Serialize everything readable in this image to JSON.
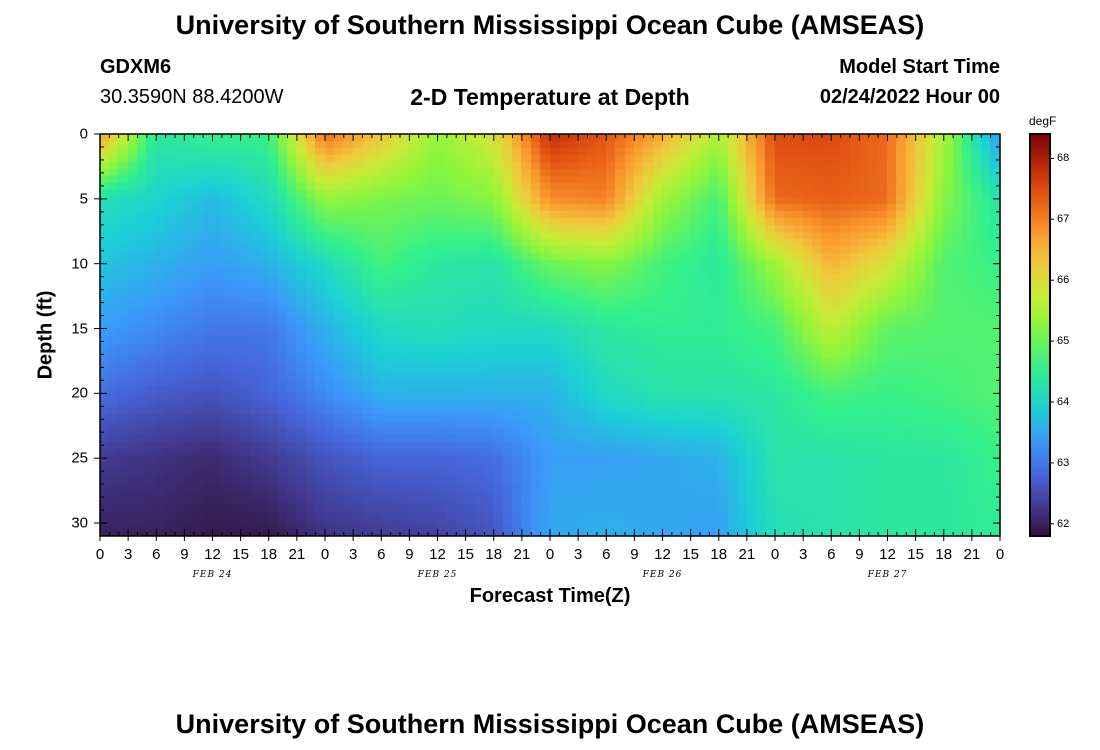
{
  "header": {
    "title": "University of Southern Mississippi Ocean Cube (AMSEAS)",
    "station_id": "GDXM6",
    "coordinates": "30.3590N  88.4200W",
    "plot_title": "2-D Temperature at Depth",
    "model_start_label": "Model Start Time",
    "model_start_value": "02/24/2022 Hour 00"
  },
  "footer": {
    "title": "University of Southern Mississippi Ocean Cube (AMSEAS)"
  },
  "chart_data": {
    "type": "heatmap",
    "title": "2-D Temperature at Depth",
    "xlabel": "Forecast Time(Z)",
    "ylabel": "Depth (ft)",
    "x_hours_range": [
      0,
      96
    ],
    "x_tick_step_hours": 3,
    "x_tick_labels": [
      "0",
      "3",
      "6",
      "9",
      "12",
      "15",
      "18",
      "21",
      "0",
      "3",
      "6",
      "9",
      "12",
      "15",
      "18",
      "21",
      "0",
      "3",
      "6",
      "9",
      "12",
      "15",
      "18",
      "21",
      "0",
      "3",
      "6",
      "9",
      "12",
      "15",
      "18",
      "21",
      "0"
    ],
    "date_labels": [
      {
        "text": "FEB 24",
        "hour": 12
      },
      {
        "text": "FEB 25",
        "hour": 36
      },
      {
        "text": "FEB 26",
        "hour": 60
      },
      {
        "text": "FEB 27",
        "hour": 84
      }
    ],
    "ylim": [
      0,
      31
    ],
    "y_ticks": [
      0,
      5,
      10,
      15,
      20,
      25,
      30
    ],
    "colorbar": {
      "unit": "degF",
      "range": [
        61.8,
        68.4
      ],
      "ticks": [
        62,
        63,
        64,
        65,
        66,
        67,
        68
      ]
    },
    "depths_ft": [
      0,
      5,
      10,
      15,
      20,
      25,
      31
    ],
    "times_hr": [
      0,
      6,
      12,
      18,
      24,
      30,
      36,
      42,
      48,
      54,
      60,
      66,
      72,
      78,
      84,
      90,
      96
    ],
    "temperature_degF": [
      [
        66.8,
        64.4,
        64.6,
        64.6,
        67.2,
        66.3,
        65.3,
        65.9,
        67.8,
        67.4,
        66.6,
        65.5,
        67.5,
        67.5,
        67.2,
        65.5,
        63.3
      ],
      [
        64.2,
        64.0,
        63.7,
        64.1,
        65.3,
        65.1,
        65.0,
        65.2,
        66.9,
        67.0,
        65.4,
        64.7,
        67.2,
        67.3,
        67.2,
        65.2,
        64.3
      ],
      [
        63.8,
        63.6,
        63.4,
        63.6,
        64.1,
        64.7,
        64.4,
        64.3,
        65.0,
        65.2,
        64.7,
        64.4,
        65.4,
        66.5,
        65.9,
        64.8,
        64.6
      ],
      [
        63.4,
        63.2,
        63.0,
        63.0,
        63.6,
        64.1,
        64.2,
        64.1,
        64.1,
        64.4,
        64.5,
        64.5,
        64.7,
        65.7,
        64.9,
        64.8,
        64.8
      ],
      [
        62.9,
        62.7,
        62.6,
        62.8,
        63.2,
        63.6,
        63.6,
        63.6,
        63.6,
        64.1,
        64.3,
        64.3,
        64.4,
        64.7,
        64.6,
        64.7,
        64.8
      ],
      [
        62.3,
        62.2,
        62.1,
        62.3,
        62.6,
        62.8,
        62.8,
        62.9,
        63.4,
        63.4,
        63.5,
        63.6,
        64.3,
        64.3,
        64.4,
        64.4,
        64.6
      ],
      [
        62.0,
        62.0,
        61.9,
        61.9,
        62.2,
        62.3,
        62.4,
        62.6,
        63.5,
        63.6,
        63.5,
        63.4,
        64.2,
        64.3,
        64.4,
        64.4,
        64.5
      ]
    ]
  }
}
